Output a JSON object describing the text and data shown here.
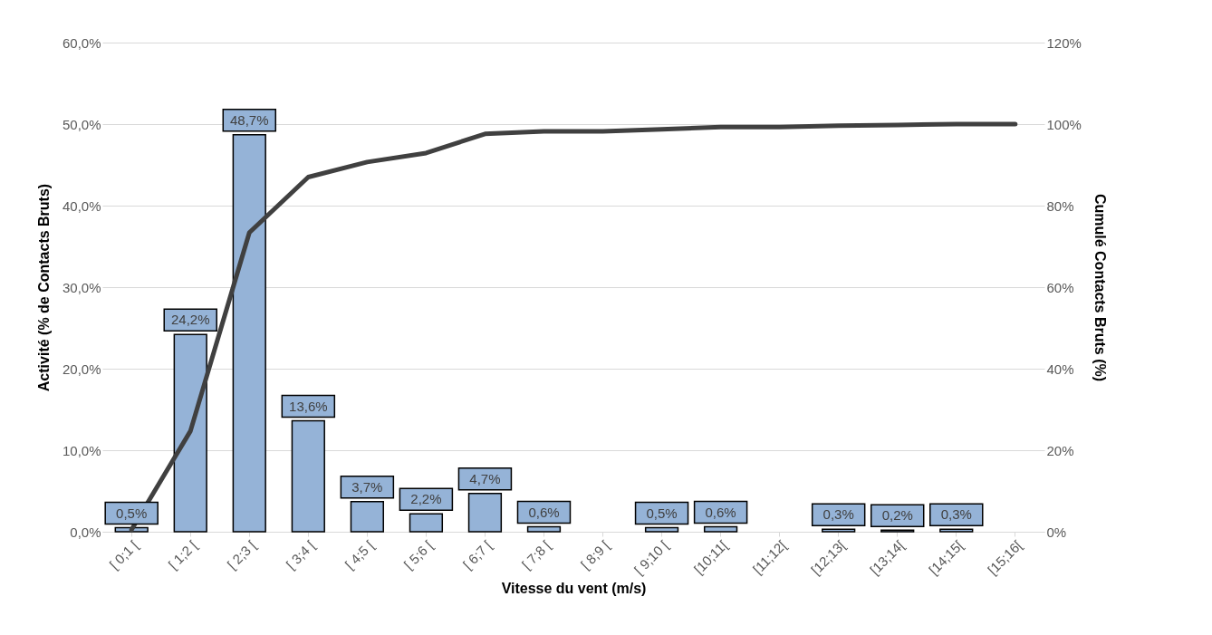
{
  "chart_data": {
    "type": "bar",
    "xlabel": "Vitesse du vent (m/s)",
    "ylabel": "Activité (% de Contacts Bruts)",
    "y2label": "Cumulé Contacts Bruts (%)",
    "categories": [
      "[ 0;1 [",
      "[ 1;2 [",
      "[ 2;3 [",
      "[ 3;4 [",
      "[ 4;5 [",
      "[ 5;6 [",
      "[ 6;7 [",
      "[ 7;8 [",
      "[ 8;9 [",
      "[ 9;10 [",
      "[10;11[",
      "[11;12[",
      "[12;13[",
      "[13;14[",
      "[14;15[",
      "[15;16["
    ],
    "series": [
      {
        "type": "bar",
        "color": "#95b3d7",
        "values": [
          0.5,
          24.2,
          48.7,
          13.6,
          3.7,
          2.2,
          4.7,
          0.6,
          0,
          0.5,
          0.6,
          0,
          0.3,
          0.2,
          0.3,
          0
        ],
        "value_labels": [
          "0,5%",
          "24,2%",
          "48,7%",
          "13,6%",
          "3,7%",
          "2,2%",
          "4,7%",
          "0,6%",
          null,
          "0,5%",
          "0,6%",
          null,
          "0,3%",
          "0,2%",
          "0,3%",
          null
        ]
      },
      {
        "type": "line",
        "axis": "y2",
        "color": "#404040",
        "values": [
          0.5,
          24.7,
          73.4,
          87.0,
          90.7,
          92.9,
          97.6,
          98.2,
          98.2,
          98.7,
          99.3,
          99.3,
          99.6,
          99.8,
          100,
          100
        ]
      }
    ],
    "ylim": [
      0,
      60
    ],
    "yticks": [
      {
        "value": 0,
        "label": "0,0%"
      },
      {
        "value": 10,
        "label": "10,0%"
      },
      {
        "value": 20,
        "label": "20,0%"
      },
      {
        "value": 30,
        "label": "30,0%"
      },
      {
        "value": 40,
        "label": "40,0%"
      },
      {
        "value": 50,
        "label": "50,0%"
      },
      {
        "value": 60,
        "label": "60,0%"
      }
    ],
    "y2lim": [
      0,
      120
    ],
    "y2ticks": [
      {
        "value": 0,
        "label": "0%"
      },
      {
        "value": 20,
        "label": "20%"
      },
      {
        "value": 40,
        "label": "40%"
      },
      {
        "value": 60,
        "label": "60%"
      },
      {
        "value": 80,
        "label": "80%"
      },
      {
        "value": 100,
        "label": "100%"
      },
      {
        "value": 120,
        "label": "120%"
      }
    ],
    "grid": "y",
    "marker": "none",
    "line_style": "solid"
  }
}
